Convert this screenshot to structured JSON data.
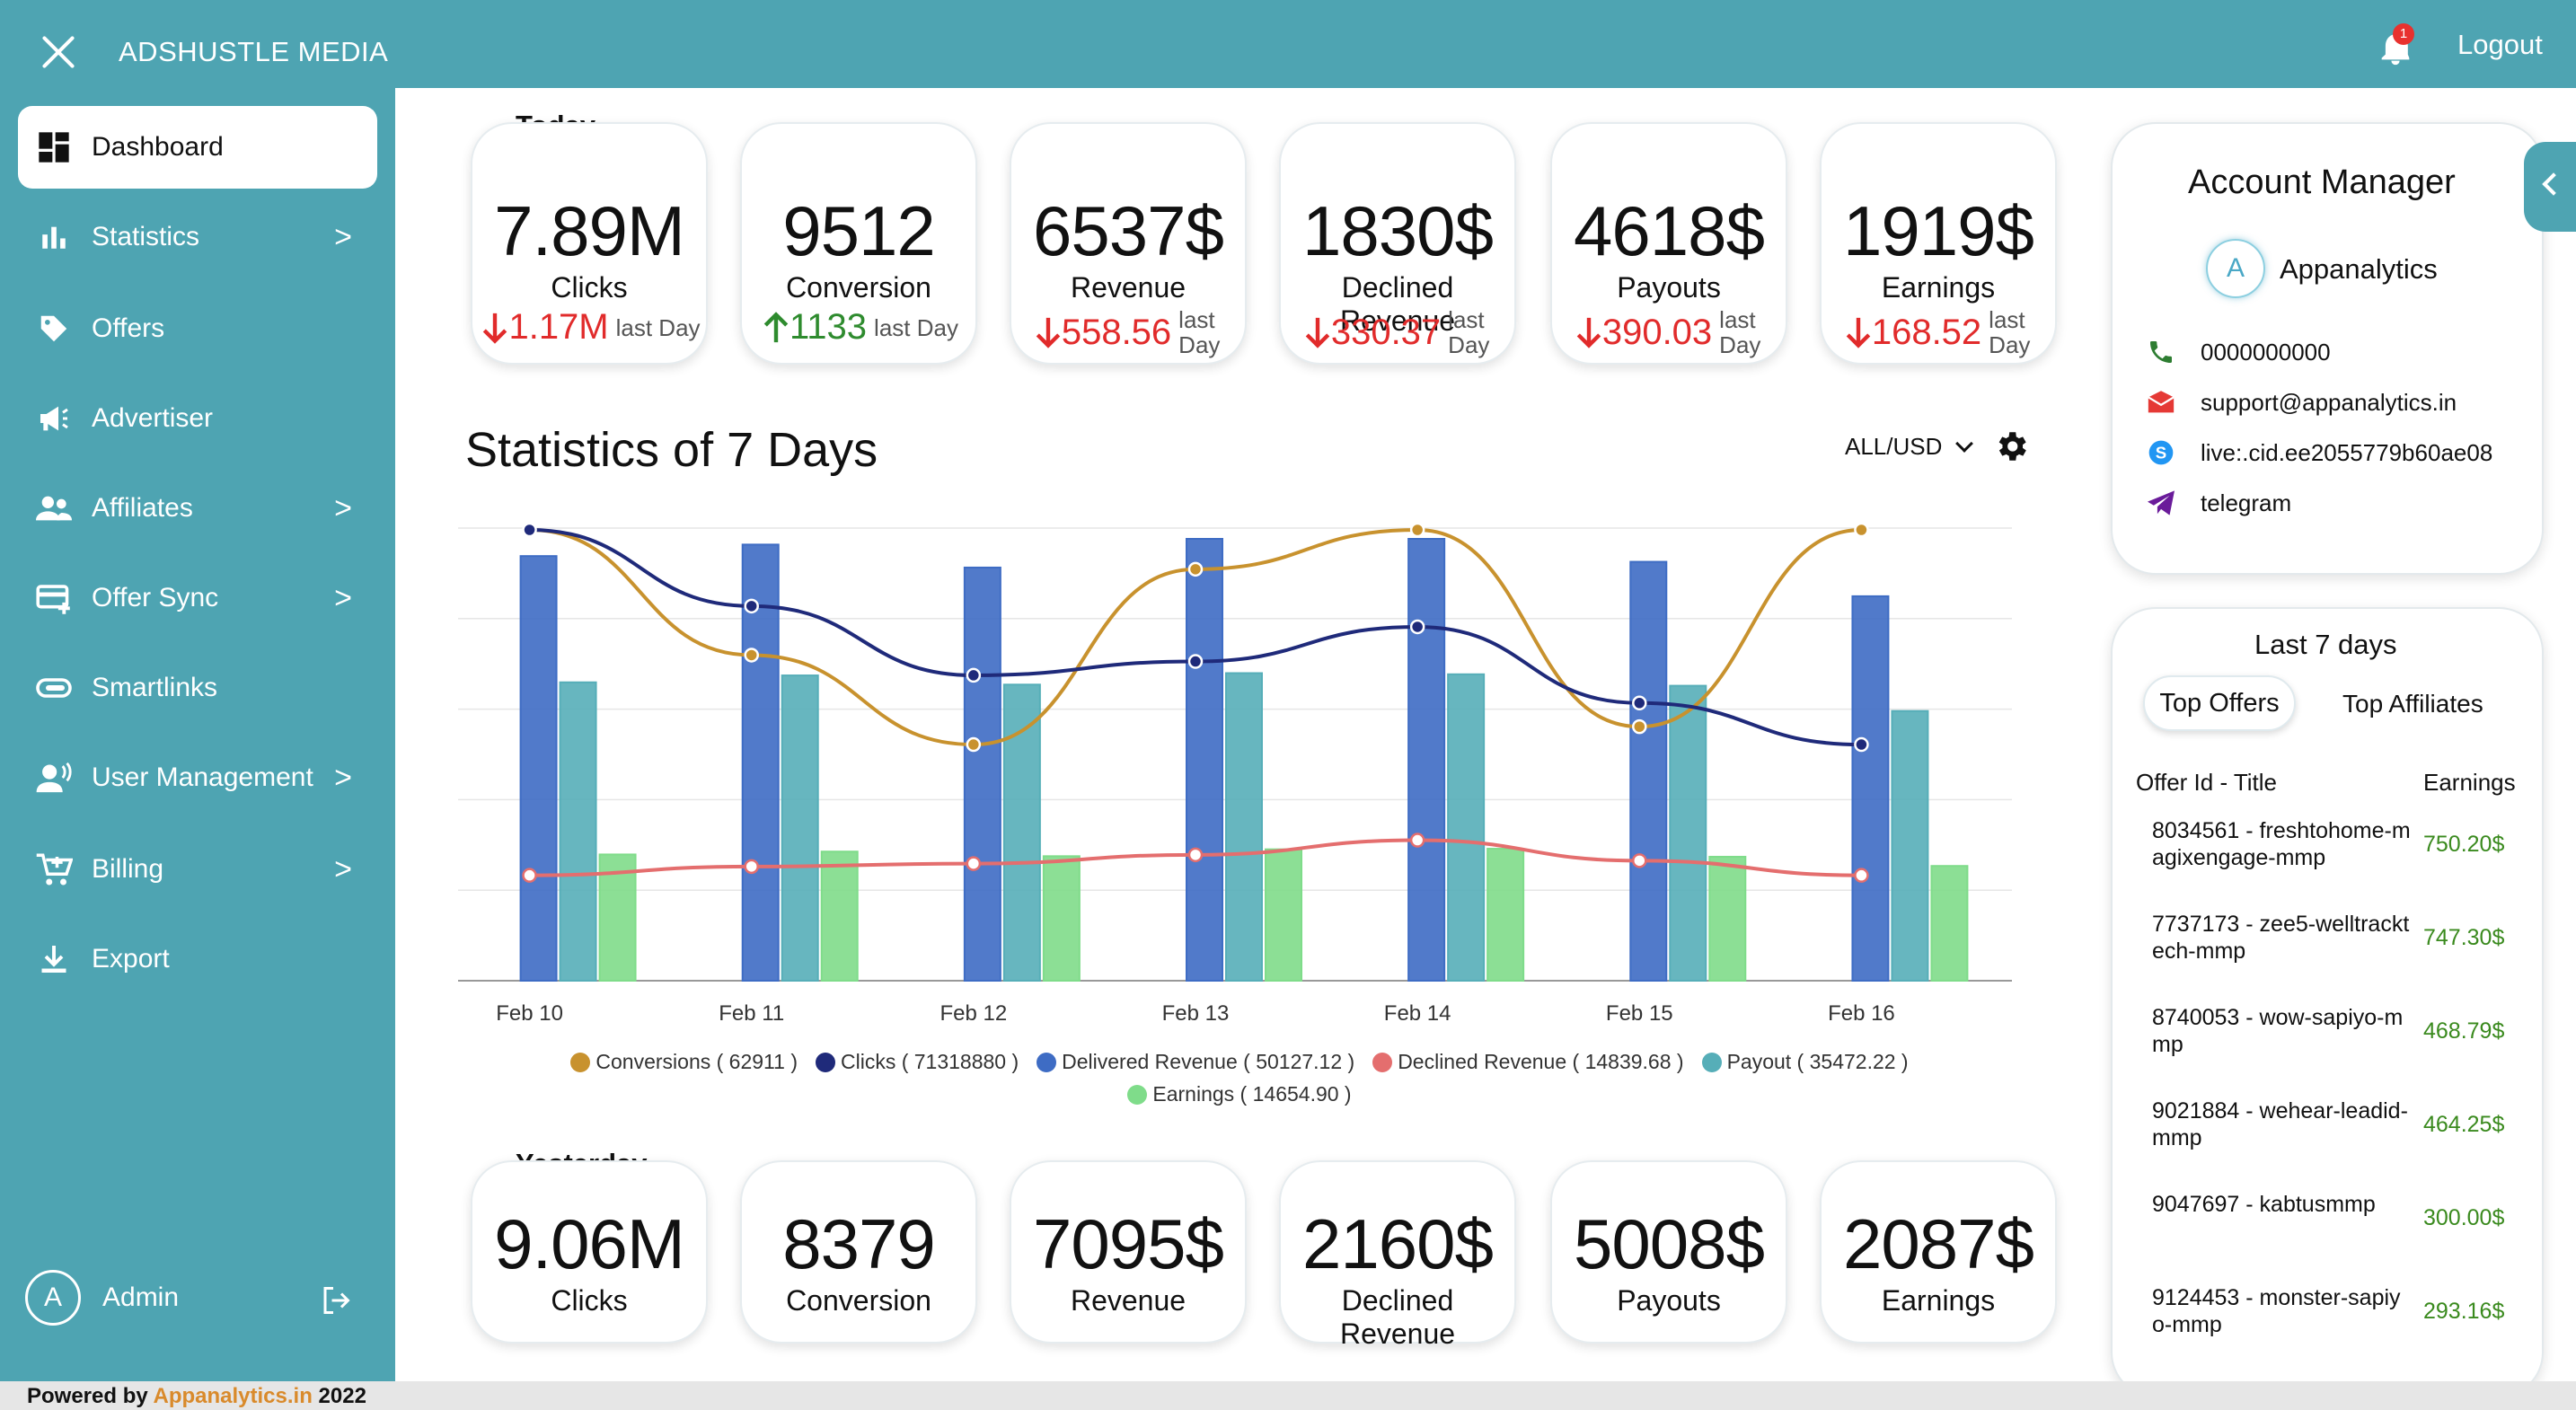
{
  "app": {
    "brand": "ADSHUSTLE MEDIA",
    "notifications": "1",
    "logout": "Logout"
  },
  "sidebar": {
    "items": [
      {
        "label": "Dashboard",
        "icon": "dashboard-icon",
        "chevron": ""
      },
      {
        "label": "Statistics",
        "icon": "bar-chart-icon",
        "chevron": ">"
      },
      {
        "label": "Offers",
        "icon": "tag-icon",
        "chevron": ""
      },
      {
        "label": "Advertiser",
        "icon": "megaphone-icon",
        "chevron": ""
      },
      {
        "label": "Affiliates",
        "icon": "people-icon",
        "chevron": ">"
      },
      {
        "label": "Offer Sync",
        "icon": "card-add-icon",
        "chevron": ">"
      },
      {
        "label": "Smartlinks",
        "icon": "link-icon",
        "chevron": ""
      },
      {
        "label": "User Management",
        "icon": "user-voice-icon",
        "chevron": ">"
      },
      {
        "label": "Billing",
        "icon": "cart-icon",
        "chevron": ">"
      },
      {
        "label": "Export",
        "icon": "download-icon",
        "chevron": ""
      }
    ],
    "admin": {
      "initial": "A",
      "name": "Admin"
    }
  },
  "today": {
    "label": "Today",
    "cards": [
      {
        "value": "7.89M",
        "label": "Clicks",
        "delta": "1.17M",
        "direction": "down",
        "sub": "last Day"
      },
      {
        "value": "9512",
        "label": "Conversion",
        "delta": "1133",
        "direction": "up",
        "sub": "last Day"
      },
      {
        "value": "6537$",
        "label": "Revenue",
        "delta": "558.56",
        "direction": "down",
        "sub": "last Day"
      },
      {
        "value": "1830$",
        "label": "Declined Revenue",
        "delta": "330.37",
        "direction": "down",
        "sub": "last Day"
      },
      {
        "value": "4618$",
        "label": "Payouts",
        "delta": "390.03",
        "direction": "down",
        "sub": "last Day"
      },
      {
        "value": "1919$",
        "label": "Earnings",
        "delta": "168.52",
        "direction": "down",
        "sub": "last Day"
      }
    ]
  },
  "yesterday": {
    "label": "Yesterday",
    "cards": [
      {
        "value": "9.06M",
        "label": "Clicks"
      },
      {
        "value": "8379",
        "label": "Conversion"
      },
      {
        "value": "7095$",
        "label": "Revenue"
      },
      {
        "value": "2160$",
        "label": "Declined Revenue"
      },
      {
        "value": "5008$",
        "label": "Payouts"
      },
      {
        "value": "2087$",
        "label": "Earnings"
      }
    ]
  },
  "chart_controls": {
    "currency": "ALL/USD"
  },
  "chart_data": {
    "type": "bar",
    "title": "Statistics of 7 Days",
    "categories": [
      "Feb 10",
      "Feb 11",
      "Feb 12",
      "Feb 13",
      "Feb 14",
      "Feb 15",
      "Feb 16"
    ],
    "grid": true,
    "legend_position": "bottom",
    "series": [
      {
        "name": "Conversions ( 62911 )",
        "kind": "line",
        "color": "#c8922e",
        "values": [
          9700,
          9000,
          8500,
          9480,
          9700,
          8600,
          9700
        ]
      },
      {
        "name": "Clicks ( 71318880 )",
        "kind": "line",
        "color": "#1f2a7a",
        "values": [
          11.0,
          9.9,
          8.9,
          9.1,
          9.6,
          8.5,
          7.9
        ]
      },
      {
        "name": "Delivered Revenue ( 50127.12 )",
        "kind": "bar",
        "color": "#3e6cc4",
        "values": [
          7400,
          7600,
          7200,
          7700,
          7700,
          7300,
          6700
        ]
      },
      {
        "name": "Declined Revenue ( 14839.68 )",
        "kind": "line",
        "color": "#e46e6e",
        "values": [
          1800,
          1950,
          2000,
          2150,
          2400,
          2050,
          1800
        ]
      },
      {
        "name": "Payout ( 35472.22 )",
        "kind": "bar",
        "color": "#56aeb8",
        "values": [
          5200,
          5320,
          5160,
          5360,
          5340,
          5140,
          4700
        ]
      },
      {
        "name": "Earnings ( 14654.90 )",
        "kind": "bar",
        "color": "#7fdc8a",
        "values": [
          2200,
          2250,
          2170,
          2290,
          2300,
          2160,
          2000
        ]
      }
    ]
  },
  "account_manager": {
    "title": "Account Manager",
    "initial": "A",
    "name": "Appanalytics",
    "phone": "0000000000",
    "email": "support@appanalytics.in",
    "skype": "live:.cid.ee2055779b60ae08",
    "telegram": "telegram"
  },
  "last7": {
    "title": "Last 7 days",
    "tabs": [
      "Top Offers",
      "Top Affiliates"
    ],
    "col_title": "Offer Id - Title",
    "col_earnings": "Earnings",
    "rows": [
      {
        "title": "8034561 - freshtohome-magixengage-mmp",
        "earnings": "750.20$"
      },
      {
        "title": "7737173 - zee5-welltracktech-mmp",
        "earnings": "747.30$"
      },
      {
        "title": "8740053 - wow-sapiyo-mmp",
        "earnings": "468.79$"
      },
      {
        "title": "9021884 - wehear-leadid-mmp",
        "earnings": "464.25$"
      },
      {
        "title": "9047697 - kabtusmmp",
        "earnings": "300.00$"
      },
      {
        "title": "9124453 - monster-sapiyo-mmp",
        "earnings": "293.16$"
      }
    ]
  },
  "footer": {
    "prefix": "Powered by",
    "link": "Appanalytics.in",
    "year": "2022"
  }
}
